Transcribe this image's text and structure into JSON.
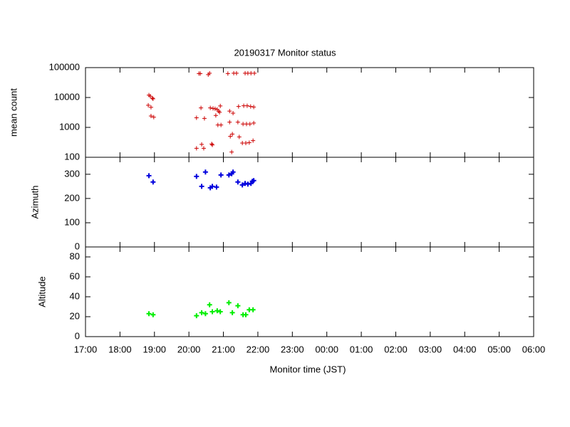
{
  "chart_data": [
    {
      "type": "scatter",
      "title": "20190317 Monitor status",
      "ylabel": "mean count",
      "log_y": true,
      "color": "#cc0000",
      "ylim": [
        100,
        100000
      ],
      "yticks": [
        100,
        1000,
        10000,
        100000
      ],
      "x": [
        18.84,
        18.88,
        18.94,
        18.96,
        18.82,
        18.9,
        18.9,
        18.98,
        20.22,
        20.22,
        20.29,
        20.33,
        20.35,
        20.37,
        20.43,
        20.45,
        20.56,
        20.6,
        20.62,
        20.66,
        20.68,
        20.7,
        20.76,
        20.78,
        20.82,
        20.84,
        20.86,
        20.89,
        20.91,
        20.93,
        21.13,
        21.18,
        21.18,
        21.2,
        21.24,
        21.26,
        21.28,
        21.3,
        21.38,
        21.42,
        21.44,
        21.46,
        21.55,
        21.57,
        21.59,
        21.63,
        21.65,
        21.67,
        21.69,
        21.71,
        21.75,
        21.77,
        21.79,
        21.8,
        21.86,
        21.88,
        21.88,
        21.9
      ],
      "values": [
        12000,
        11000,
        9500,
        9000,
        5500,
        4700,
        2400,
        2200,
        200,
        2100,
        63000,
        63000,
        4500,
        270,
        200,
        2000,
        58000,
        65000,
        4500,
        280,
        260,
        4300,
        4200,
        2500,
        4000,
        1200,
        3500,
        3200,
        5200,
        1200,
        63000,
        3500,
        1500,
        500,
        150,
        600,
        3000,
        65000,
        65000,
        1500,
        5000,
        480,
        300,
        1300,
        5300,
        65000,
        300,
        1300,
        5300,
        65000,
        310,
        1300,
        5000,
        65000,
        360,
        1400,
        4800,
        65000
      ]
    },
    {
      "type": "scatter",
      "ylabel": "Azimuth",
      "color": "#0000dd",
      "ylim": [
        0,
        370
      ],
      "yticks": [
        0,
        100,
        200,
        300
      ],
      "x": [
        18.84,
        18.96,
        20.22,
        20.37,
        20.48,
        20.62,
        20.68,
        20.8,
        20.93,
        21.16,
        21.24,
        21.28,
        21.42,
        21.55,
        21.63,
        21.71,
        21.8,
        21.84,
        21.88
      ],
      "values": [
        294,
        268,
        291,
        250,
        309,
        244,
        250,
        247,
        297,
        297,
        302,
        309,
        268,
        256,
        262,
        259,
        262,
        271,
        274
      ]
    },
    {
      "type": "scatter",
      "ylabel": "Altitude",
      "xlabel": "Monitor time (JST)",
      "color": "#00ee00",
      "ylim": [
        0,
        90
      ],
      "yticks": [
        0,
        20,
        40,
        60,
        80
      ],
      "xlim": [
        17,
        30
      ],
      "xticks": [
        {
          "value": 17,
          "label": "17:00"
        },
        {
          "value": 18,
          "label": "18:00"
        },
        {
          "value": 19,
          "label": "19:00"
        },
        {
          "value": 20,
          "label": "20:00"
        },
        {
          "value": 21,
          "label": "21:00"
        },
        {
          "value": 22,
          "label": "22:00"
        },
        {
          "value": 23,
          "label": "23:00"
        },
        {
          "value": 24,
          "label": "00:00"
        },
        {
          "value": 25,
          "label": "01:00"
        },
        {
          "value": 26,
          "label": "02:00"
        },
        {
          "value": 27,
          "label": "03:00"
        },
        {
          "value": 28,
          "label": "04:00"
        },
        {
          "value": 29,
          "label": "05:00"
        },
        {
          "value": 30,
          "label": "06:00"
        }
      ],
      "x": [
        18.84,
        18.96,
        20.22,
        20.37,
        20.48,
        20.6,
        20.68,
        20.82,
        20.91,
        21.16,
        21.26,
        21.42,
        21.57,
        21.65,
        21.75,
        21.86
      ],
      "values": [
        23,
        22,
        21,
        24,
        23,
        32,
        25,
        26,
        25,
        34,
        24,
        31,
        22,
        22,
        27,
        27
      ]
    }
  ]
}
